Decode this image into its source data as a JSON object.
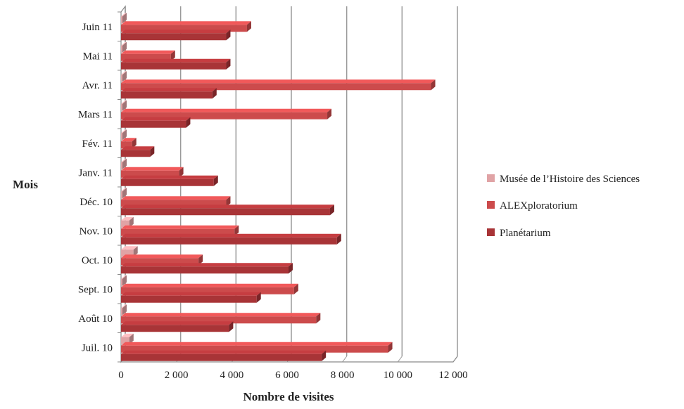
{
  "chart_data": {
    "type": "bar",
    "orientation": "horizontal",
    "title": "",
    "xlabel": "Nombre de visites",
    "ylabel": "Mois",
    "categories": [
      "Juil. 10",
      "Août 10",
      "Sept. 10",
      "Oct. 10",
      "Nov. 10",
      "Déc. 10",
      "Janv. 11",
      "Fév. 11",
      "Mars 11",
      "Avr. 11",
      "Mai 11",
      "Juin 11"
    ],
    "xlim": [
      0,
      12000
    ],
    "xticks": [
      0,
      2000,
      4000,
      6000,
      8000,
      10000,
      12000
    ],
    "xtick_labels": [
      "0",
      "2 000",
      "4 000",
      "6 000",
      "8 000",
      "10 000",
      "12 000"
    ],
    "grid": "vertical",
    "legend_position": "right",
    "series": [
      {
        "name": "Musée de l’Histoire des Sciences",
        "color": "#e0a3a5",
        "values": [
          300,
          50,
          50,
          450,
          300,
          50,
          50,
          50,
          50,
          50,
          50,
          50
        ]
      },
      {
        "name": "ALEXploratorium",
        "color": "#cc4b4c",
        "values": [
          9650,
          7050,
          6250,
          2800,
          4100,
          3800,
          2100,
          400,
          7450,
          11200,
          1800,
          4550
        ]
      },
      {
        "name": "Planétarium",
        "color": "#a83437",
        "values": [
          7250,
          3900,
          4900,
          6050,
          7800,
          7550,
          3350,
          1050,
          2350,
          3300,
          3800,
          3800
        ]
      }
    ]
  }
}
